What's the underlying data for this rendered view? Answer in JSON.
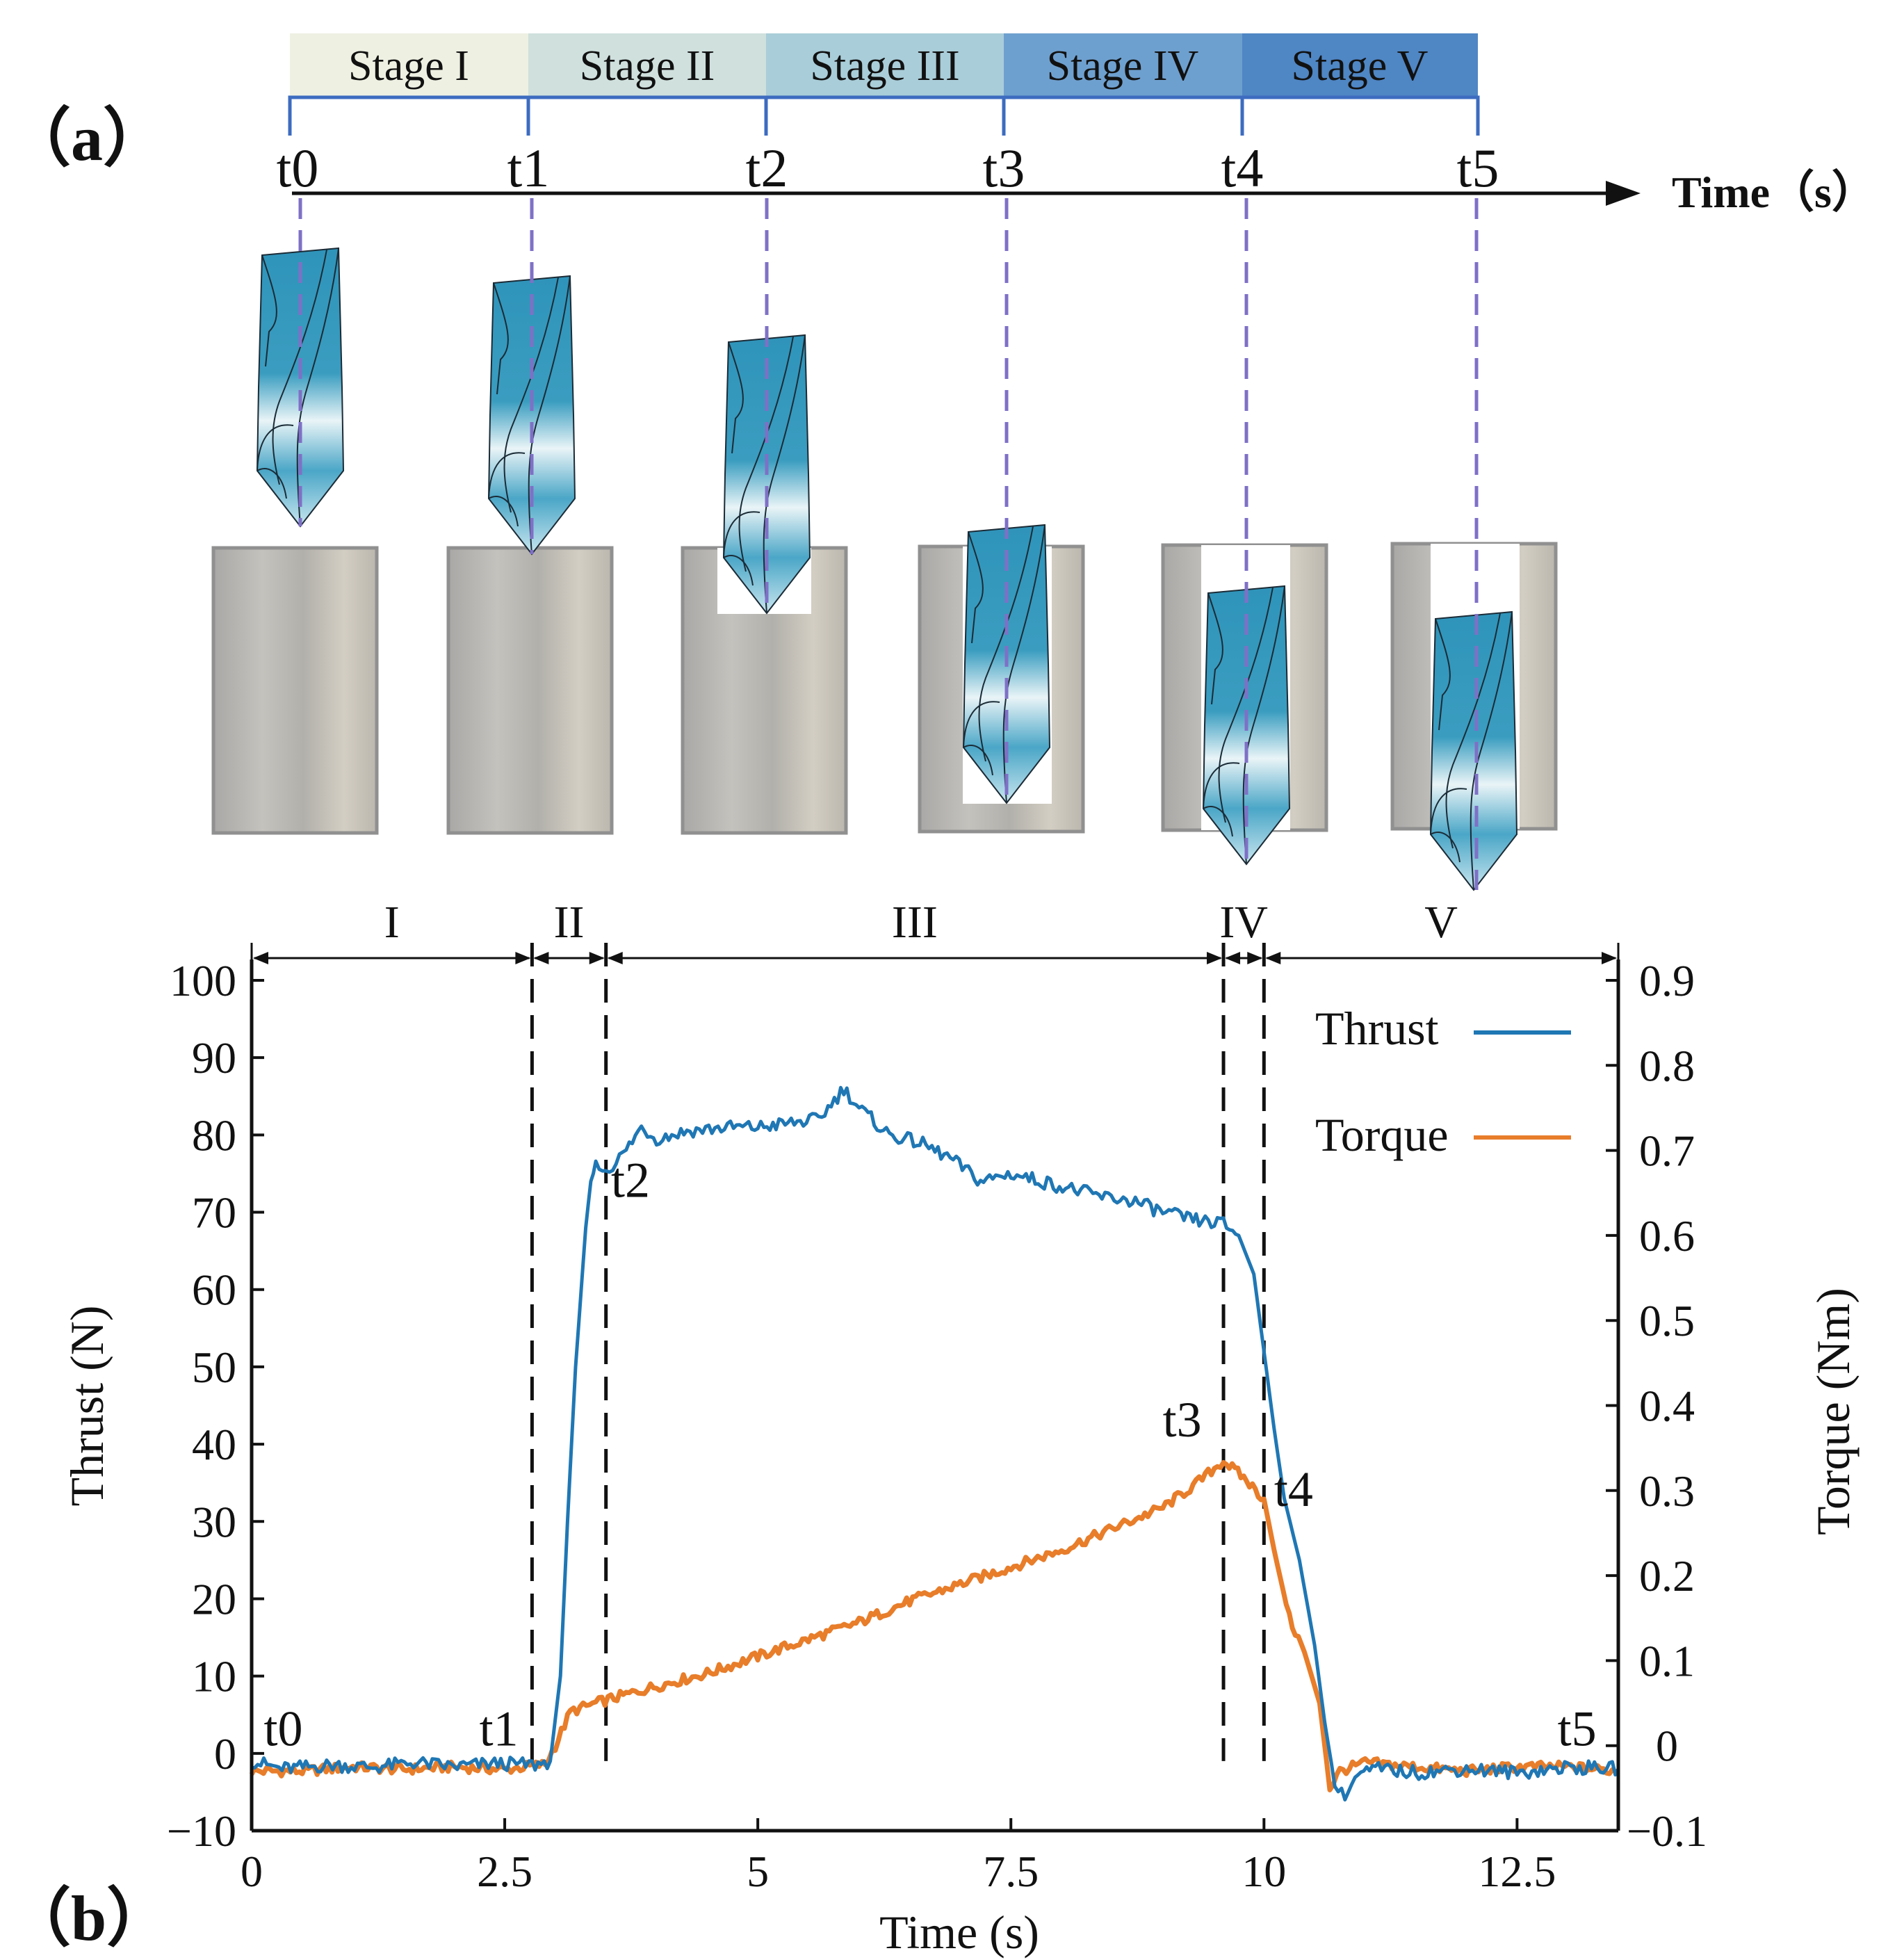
{
  "panels": {
    "a_label": "（a）",
    "b_label": "（b）"
  },
  "timeline": {
    "stages": [
      {
        "label": "Stage I",
        "color": "#eef1e2"
      },
      {
        "label": "Stage II",
        "color": "#cfe0dd"
      },
      {
        "label": "Stage III",
        "color": "#a9cdd9"
      },
      {
        "label": "Stage IV",
        "color": "#6ea0cf"
      },
      {
        "label": "Stage V",
        "color": "#4f86c4"
      }
    ],
    "time_marks": [
      "t0",
      "t1",
      "t2",
      "t3",
      "t4",
      "t5"
    ],
    "axis_label": "Time（s）",
    "bracket_color": "#3d6cc0",
    "guide_color": "#7f70c6"
  },
  "illustration": {
    "workpiece_color": "#bdbab3",
    "drill_color": "#3e9cbf",
    "drill_highlight": "#e6f3f7"
  },
  "chart_data": {
    "type": "line",
    "title": "",
    "xlabel": "Time (s)",
    "ylabel": "Thrust (N)",
    "y2label": "Torque (Nm)",
    "xlim": [
      0,
      13.5
    ],
    "ylim": [
      -10,
      100
    ],
    "y2lim": [
      -0.1,
      0.9
    ],
    "xticks": [
      0,
      2.5,
      5,
      7.5,
      10,
      12.5
    ],
    "xtick_labels": [
      "0",
      "2.5",
      "5",
      "7.5",
      "10",
      "12.5"
    ],
    "yticks": [
      -10,
      0,
      10,
      20,
      30,
      40,
      50,
      60,
      70,
      80,
      90,
      100
    ],
    "ytick_labels": [
      "−10",
      "0",
      "10",
      "20",
      "30",
      "40",
      "50",
      "60",
      "70",
      "80",
      "90",
      "100"
    ],
    "y2ticks": [
      -0.1,
      0,
      0.1,
      0.2,
      0.3,
      0.4,
      0.5,
      0.6,
      0.7,
      0.8,
      0.9
    ],
    "y2tick_labels": [
      "−0.1",
      "0",
      "0.1",
      "0.2",
      "0.3",
      "0.4",
      "0.5",
      "0.6",
      "0.7",
      "0.8",
      "0.9"
    ],
    "legend": {
      "position": "top-right",
      "entries": [
        "Thrust",
        "Torque"
      ]
    },
    "series": [
      {
        "name": "Thrust",
        "axis": "left",
        "color": "#1f77b4",
        "points": [
          [
            0,
            -1
          ],
          [
            0.3,
            -2
          ],
          [
            0.8,
            -1.5
          ],
          [
            1.2,
            -1.8
          ],
          [
            1.6,
            -1.2
          ],
          [
            2.0,
            -1.7
          ],
          [
            2.4,
            -1.3
          ],
          [
            2.8,
            -1.5
          ],
          [
            2.95,
            -1
          ],
          [
            3.05,
            10
          ],
          [
            3.12,
            30
          ],
          [
            3.2,
            50
          ],
          [
            3.3,
            68
          ],
          [
            3.35,
            74
          ],
          [
            3.4,
            76
          ],
          [
            3.5,
            75.5
          ],
          [
            3.6,
            76.5
          ],
          [
            3.7,
            78
          ],
          [
            3.85,
            81
          ],
          [
            4.0,
            79.5
          ],
          [
            4.3,
            80.5
          ],
          [
            4.7,
            81
          ],
          [
            5.0,
            81
          ],
          [
            5.3,
            81.5
          ],
          [
            5.6,
            82
          ],
          [
            5.85,
            86
          ],
          [
            6.0,
            83.5
          ],
          [
            6.3,
            80
          ],
          [
            6.6,
            79
          ],
          [
            6.9,
            77
          ],
          [
            7.2,
            74
          ],
          [
            7.5,
            75
          ],
          [
            7.8,
            74
          ],
          [
            8.1,
            73
          ],
          [
            8.4,
            72
          ],
          [
            8.7,
            71.5
          ],
          [
            9.0,
            70
          ],
          [
            9.3,
            69
          ],
          [
            9.6,
            68.5
          ],
          [
            9.75,
            67
          ],
          [
            9.9,
            62
          ],
          [
            10.0,
            52
          ],
          [
            10.1,
            42
          ],
          [
            10.2,
            33
          ],
          [
            10.35,
            25
          ],
          [
            10.5,
            14
          ],
          [
            10.6,
            4
          ],
          [
            10.7,
            -4
          ],
          [
            10.8,
            -6
          ],
          [
            10.9,
            -3
          ],
          [
            11.1,
            -2
          ],
          [
            11.5,
            -2.5
          ],
          [
            12.0,
            -2
          ],
          [
            12.5,
            -2.5
          ],
          [
            13.0,
            -1.8
          ],
          [
            13.5,
            -2
          ]
        ]
      },
      {
        "name": "Torque",
        "axis": "right",
        "color": "#e87d2a",
        "points": [
          [
            0,
            -0.03
          ],
          [
            0.5,
            -0.03
          ],
          [
            1.0,
            -0.025
          ],
          [
            1.5,
            -0.028
          ],
          [
            2.0,
            -0.025
          ],
          [
            2.5,
            -0.028
          ],
          [
            2.9,
            -0.022
          ],
          [
            3.0,
            0.0
          ],
          [
            3.15,
            0.04
          ],
          [
            3.4,
            0.05
          ],
          [
            3.7,
            0.06
          ],
          [
            4.0,
            0.07
          ],
          [
            4.5,
            0.085
          ],
          [
            5.0,
            0.105
          ],
          [
            5.5,
            0.125
          ],
          [
            6.0,
            0.145
          ],
          [
            6.5,
            0.17
          ],
          [
            7.0,
            0.19
          ],
          [
            7.5,
            0.21
          ],
          [
            8.0,
            0.23
          ],
          [
            8.5,
            0.255
          ],
          [
            9.0,
            0.28
          ],
          [
            9.3,
            0.305
          ],
          [
            9.6,
            0.335
          ],
          [
            9.8,
            0.315
          ],
          [
            10.0,
            0.29
          ],
          [
            10.1,
            0.23
          ],
          [
            10.25,
            0.15
          ],
          [
            10.4,
            0.11
          ],
          [
            10.55,
            0.05
          ],
          [
            10.65,
            -0.05
          ],
          [
            10.75,
            -0.03
          ],
          [
            11.0,
            -0.02
          ],
          [
            11.5,
            -0.025
          ],
          [
            12.0,
            -0.03
          ],
          [
            12.5,
            -0.025
          ],
          [
            13.0,
            -0.025
          ],
          [
            13.5,
            -0.03
          ]
        ]
      }
    ],
    "phase_boundaries": [
      2.77,
      3.5,
      9.6,
      10.0
    ],
    "phases": [
      {
        "label": "I",
        "from": 0,
        "to": 2.77
      },
      {
        "label": "II",
        "from": 2.77,
        "to": 3.5
      },
      {
        "label": "III",
        "from": 3.5,
        "to": 9.6
      },
      {
        "label": "IV",
        "from": 9.6,
        "to": 10.0
      },
      {
        "label": "V",
        "from": 10.0,
        "to": 13.5
      }
    ],
    "annotations": [
      {
        "text": "t0",
        "x": 0.12,
        "y": 1
      },
      {
        "text": "t1",
        "x": 2.25,
        "y": 1
      },
      {
        "text": "t2",
        "x": 3.55,
        "y": 72
      },
      {
        "text": "t3",
        "x": 9.0,
        "y": 41
      },
      {
        "text": "t4",
        "x": 10.1,
        "y": 32
      },
      {
        "text": "t5",
        "x": 12.9,
        "y": 1
      }
    ]
  }
}
